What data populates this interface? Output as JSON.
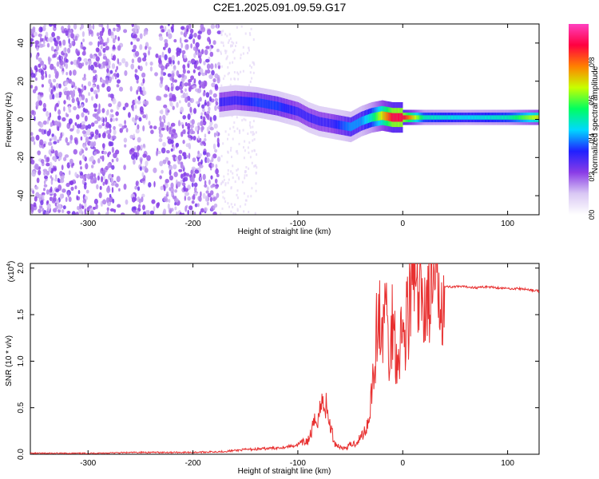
{
  "figure": {
    "title": "C2E1.2025.091.09.59.G17"
  },
  "chart_data": [
    {
      "type": "heatmap",
      "title": "C2E1.2025.091.09.59.G17",
      "xlabel": "Height of straight line (km)",
      "ylabel": "Frequency (Hz)",
      "xlim": [
        -355,
        130
      ],
      "ylim": [
        -50,
        50
      ],
      "x_ticks": [
        -300,
        -200,
        -100,
        0,
        100
      ],
      "y_ticks": [
        -40,
        -20,
        0,
        20,
        40
      ],
      "x_tick_labels": [
        "-300",
        "-200",
        "-100",
        "0",
        "100"
      ],
      "y_tick_labels": [
        "-40",
        "-20",
        "0",
        "20",
        "40"
      ],
      "colorbar": {
        "label": "Normalized spectral amplitude",
        "range": [
          0,
          1
        ],
        "ticks": [
          0.0,
          0.2,
          0.4,
          0.6,
          0.8
        ],
        "tick_labels": [
          "0.0",
          "0.2",
          "0.4",
          "0.6",
          "0.8"
        ],
        "colors": [
          "#ffffff",
          "#d9c8f4",
          "#8a3ce6",
          "#2020ff",
          "#00d8ff",
          "#00ff60",
          "#c8ff00",
          "#ff8000",
          "#ff0040",
          "#ff40c0"
        ]
      },
      "signal_track": {
        "x": [
          -175,
          -160,
          -140,
          -120,
          -100,
          -90,
          -80,
          -70,
          -60,
          -50,
          -40,
          -30,
          -20,
          -10,
          0,
          20,
          60,
          100,
          130
        ],
        "frequency": [
          9,
          10,
          9,
          7,
          4,
          1,
          -1,
          -2,
          -3,
          -4,
          -1,
          1,
          2,
          1,
          1,
          1,
          1,
          1,
          1
        ],
        "peak_amplitude": [
          0.3,
          0.3,
          0.35,
          0.35,
          0.3,
          0.3,
          0.3,
          0.3,
          0.35,
          0.4,
          0.4,
          0.5,
          0.7,
          0.9,
          0.9,
          0.5,
          0.45,
          0.5,
          0.7
        ]
      },
      "noise_region": {
        "x_range": [
          -355,
          -175
        ],
        "frequency_range": [
          -50,
          50
        ],
        "amplitude": [
          0.1,
          0.25
        ]
      },
      "grid": false,
      "legend": "none"
    },
    {
      "type": "line",
      "xlabel": "Height of straight line (km)",
      "ylabel": "SNR (10 * v/v)",
      "y_multiplier_label": "(x10",
      "y_multiplier_exponent": "4",
      "xlim": [
        -355,
        130
      ],
      "ylim": [
        0,
        2.05
      ],
      "x_ticks": [
        -300,
        -200,
        -100,
        0,
        100
      ],
      "y_ticks": [
        0.0,
        0.5,
        1.0,
        1.5,
        2.0
      ],
      "x_tick_labels": [
        "-300",
        "-200",
        "-100",
        "0",
        "100"
      ],
      "y_tick_labels": [
        "0.0",
        "0.5",
        "1.0",
        "1.5",
        "2.0"
      ],
      "color": "#e83030",
      "series": [
        {
          "x": [
            -355,
            -300,
            -250,
            -200,
            -170,
            -150,
            -130,
            -110,
            -100,
            -90,
            -85,
            -80,
            -75,
            -70,
            -65,
            -60,
            -55,
            -50,
            -45,
            -40,
            -35,
            -32,
            -30,
            -27,
            -25,
            -22,
            -20,
            -17,
            -15,
            -12,
            -10,
            -7,
            -5,
            -2,
            0,
            3,
            5,
            8,
            10,
            13,
            15,
            20,
            25,
            30,
            35,
            40,
            50,
            60,
            70,
            80,
            90,
            100,
            110,
            120,
            130
          ],
          "values": [
            0.01,
            0.01,
            0.02,
            0.02,
            0.03,
            0.05,
            0.06,
            0.08,
            0.1,
            0.15,
            0.3,
            0.45,
            0.6,
            0.35,
            0.12,
            0.08,
            0.06,
            0.1,
            0.12,
            0.18,
            0.28,
            0.4,
            0.7,
            0.9,
            1.3,
            1.5,
            1.1,
            1.75,
            1.4,
            0.9,
            1.5,
            1.2,
            1.0,
            1.35,
            1.2,
            1.4,
            1.55,
            1.6,
            2.05,
            1.65,
            1.6,
            1.65,
            1.7,
            1.75,
            1.78,
            1.8,
            1.8,
            1.8,
            1.79,
            1.8,
            1.79,
            1.78,
            1.78,
            1.77,
            1.75
          ]
        }
      ],
      "grid": false,
      "legend": "none"
    }
  ]
}
